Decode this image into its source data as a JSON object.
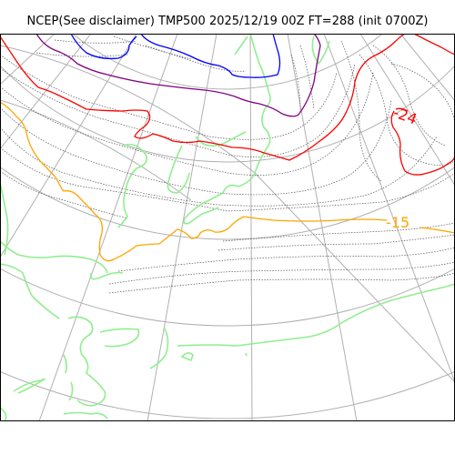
{
  "title": "NCEP(See disclaimer) TMP500 2025/12/19 00Z FT=288 (init 0700Z)",
  "colors": {
    "background": "#ffffff",
    "frame": "#000000",
    "graticule": "#b0b0b0",
    "coastline": "#90ee90",
    "isotherm_fine": "#505050",
    "isotherm_m15": "#ffa500",
    "isotherm_m24": "#ff0000",
    "isotherm_purple": "#800080",
    "isotherm_blue": "#0000ff"
  },
  "contour_labels": [
    {
      "text": "-24",
      "color": "#ff0000"
    },
    {
      "text": "-15",
      "color": "#ffa500"
    }
  ]
}
